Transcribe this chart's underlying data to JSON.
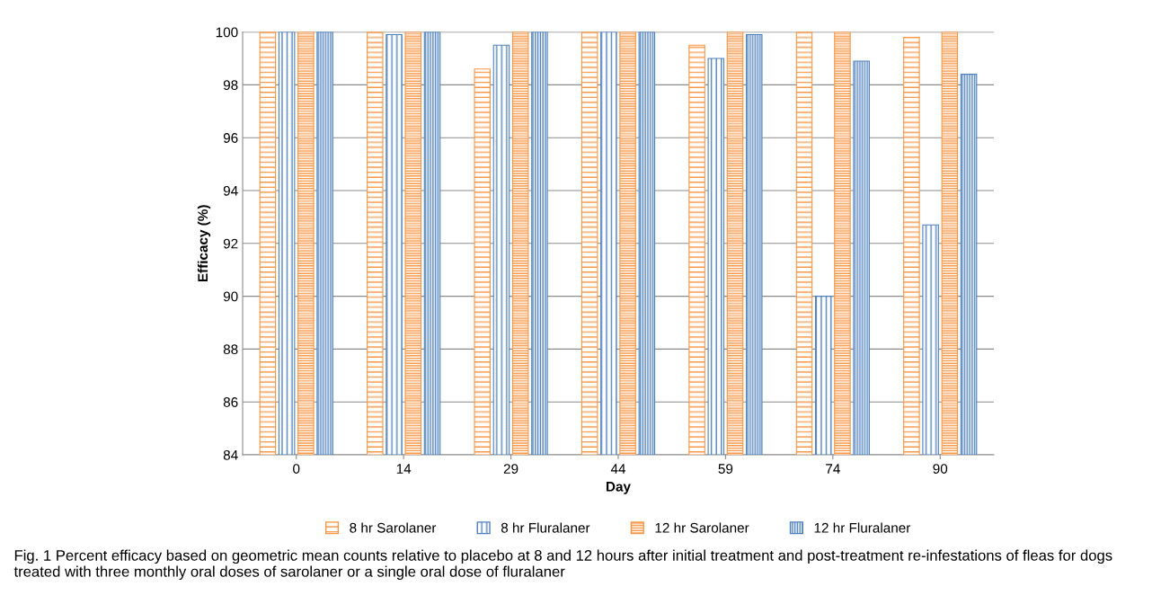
{
  "chart_data": {
    "type": "bar",
    "xlabel": "Day",
    "ylabel": "Efficacy (%)",
    "categories": [
      "0",
      "14",
      "29",
      "44",
      "59",
      "74",
      "90"
    ],
    "series": [
      {
        "name": "8 hr Sarolaner",
        "color": "#f79646",
        "values": [
          100,
          100,
          98.6,
          100,
          99.5,
          100,
          99.8
        ]
      },
      {
        "name": "8 hr Fluralaner",
        "color": "#4f81bd",
        "values": [
          100,
          99.9,
          99.5,
          100,
          99.0,
          90.0,
          92.7
        ]
      },
      {
        "name": "12 hr Sarolaner",
        "color": "#f79646",
        "values": [
          100,
          100,
          100,
          100,
          100,
          100,
          100
        ]
      },
      {
        "name": "12 hr Fluralaner",
        "color": "#4f81bd",
        "values": [
          100,
          100,
          100,
          100,
          99.9,
          98.9,
          98.4
        ]
      }
    ],
    "ylim": [
      84,
      100
    ],
    "yticks": [
      84,
      86,
      88,
      90,
      92,
      94,
      96,
      98,
      100
    ],
    "grid": "y",
    "legend": "bottom",
    "annotations": [
      "Fig. 1 Percent efficacy based on geometric mean counts relative to placebo at 8 and 12 hours after initial treatment and post-treatment re-infestations of fleas for dogs treated with three monthly oral doses of sarolaner or a single oral dose of fluralaner"
    ]
  }
}
